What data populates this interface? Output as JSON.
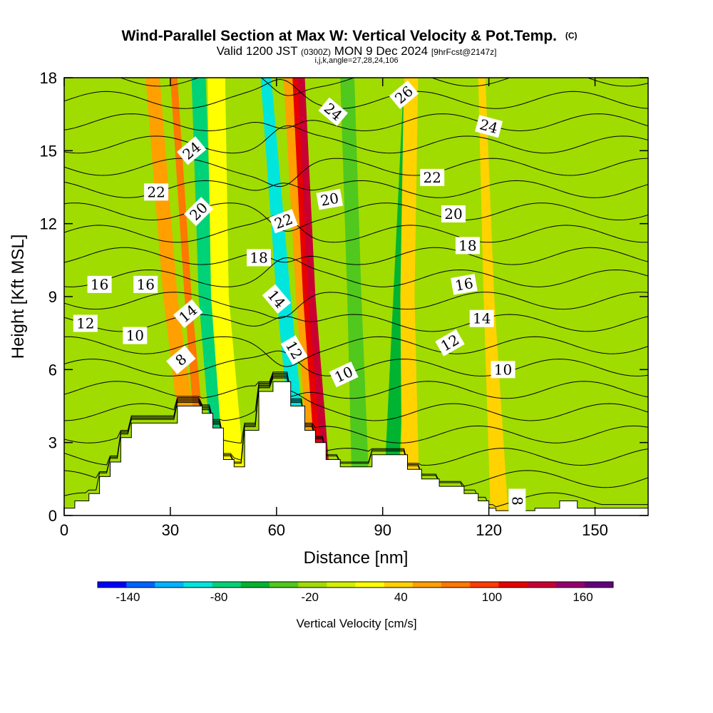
{
  "chart_data": {
    "type": "heatmap",
    "title": "Wind-Parallel Section at Max W: Vertical Velocity & Pot.Temp.",
    "title_mark": "(C)",
    "subtitle_parts": [
      "Valid 1200 JST ",
      "(0300Z)",
      " MON 9 Dec 2024 ",
      "[9hrFcst@2147z]"
    ],
    "subtitle2": "i,j,k,angle=27,28,24,106",
    "xlabel": "Distance [nm]",
    "ylabel": "Height [Kft MSL]",
    "xlim": [
      0,
      165
    ],
    "ylim": [
      0,
      18
    ],
    "xticks": [
      0,
      30,
      60,
      90,
      120,
      150
    ],
    "yticks": [
      0,
      3,
      6,
      9,
      12,
      15,
      18
    ],
    "grid": false,
    "colorbar": {
      "label": "Vertical Velocity [cm/s]",
      "ticks": [
        -140,
        -80,
        -20,
        40,
        100,
        160
      ],
      "range": [
        -160,
        180
      ],
      "colors": [
        "#0000ff",
        "#0064ff",
        "#00b4ff",
        "#00e6dc",
        "#00d278",
        "#00b432",
        "#50c81e",
        "#a0dc00",
        "#d2f000",
        "#ffff00",
        "#ffd200",
        "#ffa000",
        "#ff7800",
        "#ff3c00",
        "#e60000",
        "#c80032",
        "#96006e",
        "#64007d"
      ]
    },
    "terrain": [
      [
        0,
        0.3
      ],
      [
        3,
        0.6
      ],
      [
        7,
        0.9
      ],
      [
        10,
        1.6
      ],
      [
        13,
        2.2
      ],
      [
        16,
        3.2
      ],
      [
        19,
        3.8
      ],
      [
        32,
        4.5
      ],
      [
        39,
        4.2
      ],
      [
        42,
        3.6
      ],
      [
        45,
        2.3
      ],
      [
        48,
        2
      ],
      [
        51,
        3.5
      ],
      [
        55,
        5.1
      ],
      [
        59,
        5.5
      ],
      [
        64,
        4.5
      ],
      [
        68,
        3.5
      ],
      [
        71,
        3
      ],
      [
        74,
        2.3
      ],
      [
        78,
        2
      ],
      [
        87,
        2.5
      ],
      [
        97,
        1.9
      ],
      [
        101,
        1.5
      ],
      [
        106,
        1.2
      ],
      [
        113,
        0.9
      ],
      [
        117,
        0.6
      ],
      [
        120,
        0.3
      ],
      [
        122,
        0.2
      ],
      [
        133,
        0.3
      ],
      [
        140,
        0.6
      ],
      [
        145,
        0.3
      ],
      [
        165,
        0.3
      ]
    ],
    "velocity_field": [
      {
        "x": [
          38,
          30,
          25
        ],
        "width": [
          5,
          4,
          4
        ],
        "value": 60
      },
      {
        "x": [
          40,
          35,
          31
        ],
        "width": [
          3,
          2,
          2
        ],
        "value": 80
      },
      {
        "x": [
          45,
          40,
          38
        ],
        "width": [
          4,
          4,
          4
        ],
        "value": -70
      },
      {
        "x": [
          49,
          44,
          43
        ],
        "width": [
          6,
          5,
          5
        ],
        "value": 20
      },
      {
        "x": [
          68,
          62,
          57
        ],
        "width": [
          4,
          4,
          3
        ],
        "value": -90
      },
      {
        "x": [
          73,
          68,
          64
        ],
        "width": [
          6,
          5,
          4
        ],
        "value": 60
      },
      {
        "x": [
          74,
          69,
          66
        ],
        "width": [
          4,
          3,
          3
        ],
        "value": 110
      },
      {
        "x": [
          75,
          70,
          67
        ],
        "width": [
          2,
          2,
          2
        ],
        "value": 140
      },
      {
        "x": [
          84,
          82,
          80
        ],
        "width": [
          5,
          4,
          4
        ],
        "value": -30
      },
      {
        "x": [
          92,
          95,
          98
        ],
        "width": [
          4,
          4,
          4
        ],
        "value": -50
      },
      {
        "x": [
          98,
          97,
          98
        ],
        "width": [
          5,
          4,
          4
        ],
        "value": 40
      },
      {
        "x": [
          123,
          120,
          118
        ],
        "width": [
          5,
          3,
          2
        ],
        "value": 40
      }
    ],
    "theta_contours": [
      {
        "level": 8,
        "labels": [
          {
            "x": 33,
            "y": 6.4,
            "angle": -40
          },
          {
            "x": 128,
            "y": 0.6,
            "angle": 90
          }
        ]
      },
      {
        "level": 10,
        "labels": [
          {
            "x": 20,
            "y": 7.4,
            "angle": 0
          },
          {
            "x": 79,
            "y": 5.8,
            "angle": -25
          },
          {
            "x": 124,
            "y": 6.0,
            "angle": 0
          }
        ]
      },
      {
        "level": 12,
        "labels": [
          {
            "x": 6,
            "y": 7.9,
            "angle": 0
          },
          {
            "x": 65,
            "y": 6.8,
            "angle": 60
          },
          {
            "x": 109,
            "y": 7.1,
            "angle": -30
          }
        ]
      },
      {
        "level": 14,
        "labels": [
          {
            "x": 35,
            "y": 8.3,
            "angle": -40
          },
          {
            "x": 60,
            "y": 8.9,
            "angle": 50
          },
          {
            "x": 118,
            "y": 8.1,
            "angle": 0
          }
        ]
      },
      {
        "level": 16,
        "labels": [
          {
            "x": 10,
            "y": 9.5,
            "angle": 0
          },
          {
            "x": 23,
            "y": 9.5,
            "angle": 0
          },
          {
            "x": 113,
            "y": 9.5,
            "angle": -10
          }
        ]
      },
      {
        "level": 18,
        "labels": [
          {
            "x": 55,
            "y": 10.6,
            "angle": 0
          },
          {
            "x": 114,
            "y": 11.1,
            "angle": 0
          }
        ]
      },
      {
        "level": 20,
        "labels": [
          {
            "x": 38,
            "y": 12.5,
            "angle": -45
          },
          {
            "x": 75,
            "y": 13.0,
            "angle": -10
          },
          {
            "x": 110,
            "y": 12.4,
            "angle": 0
          }
        ]
      },
      {
        "level": 22,
        "labels": [
          {
            "x": 26,
            "y": 13.3,
            "angle": 0
          },
          {
            "x": 62,
            "y": 12.1,
            "angle": -20
          },
          {
            "x": 104,
            "y": 13.9,
            "angle": 0
          }
        ]
      },
      {
        "level": 24,
        "labels": [
          {
            "x": 36,
            "y": 15.0,
            "angle": -40
          },
          {
            "x": 76,
            "y": 16.6,
            "angle": 40
          },
          {
            "x": 120,
            "y": 16.0,
            "angle": 15
          }
        ]
      },
      {
        "level": 26,
        "labels": [
          {
            "x": 96,
            "y": 17.3,
            "angle": -40
          }
        ]
      }
    ]
  }
}
